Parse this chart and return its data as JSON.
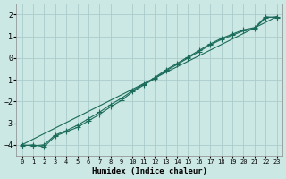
{
  "xlabel": "Humidex (Indice chaleur)",
  "ylabel": "",
  "bg_color": "#cce8e4",
  "grid_color": "#aacccc",
  "line_color": "#1a6b5a",
  "xlim": [
    -0.5,
    23.5
  ],
  "ylim": [
    -4.5,
    2.5
  ],
  "x_ticks": [
    0,
    1,
    2,
    3,
    4,
    5,
    6,
    7,
    8,
    9,
    10,
    11,
    12,
    13,
    14,
    15,
    16,
    17,
    18,
    19,
    20,
    21,
    22,
    23
  ],
  "y_ticks": [
    -4,
    -3,
    -2,
    -1,
    0,
    1,
    2
  ],
  "straight_line_x": [
    0,
    23
  ],
  "straight_line_y": [
    -4.0,
    1.9
  ],
  "series1_x": [
    0,
    1,
    2,
    3,
    4,
    5,
    6,
    7,
    8,
    9,
    10,
    11,
    12,
    13,
    14,
    15,
    16,
    17,
    18,
    19,
    20,
    21,
    22,
    23
  ],
  "series1_y": [
    -4.0,
    -4.05,
    -4.0,
    -3.55,
    -3.35,
    -3.1,
    -2.8,
    -2.5,
    -2.15,
    -1.85,
    -1.5,
    -1.2,
    -0.9,
    -0.55,
    -0.25,
    0.05,
    0.35,
    0.65,
    0.9,
    1.1,
    1.3,
    1.4,
    1.9,
    1.85
  ],
  "series2_x": [
    0,
    1,
    2,
    3,
    4,
    5,
    6,
    7,
    8,
    9,
    10,
    11,
    12,
    13,
    14,
    15,
    16,
    17,
    18,
    19,
    20,
    21,
    22,
    23
  ],
  "series2_y": [
    -4.05,
    -4.0,
    -4.1,
    -3.6,
    -3.4,
    -3.2,
    -2.9,
    -2.6,
    -2.25,
    -1.95,
    -1.55,
    -1.25,
    -0.95,
    -0.6,
    -0.3,
    0.0,
    0.3,
    0.6,
    0.85,
    1.05,
    1.25,
    1.35,
    1.85,
    1.9
  ],
  "marker_size": 3.0
}
